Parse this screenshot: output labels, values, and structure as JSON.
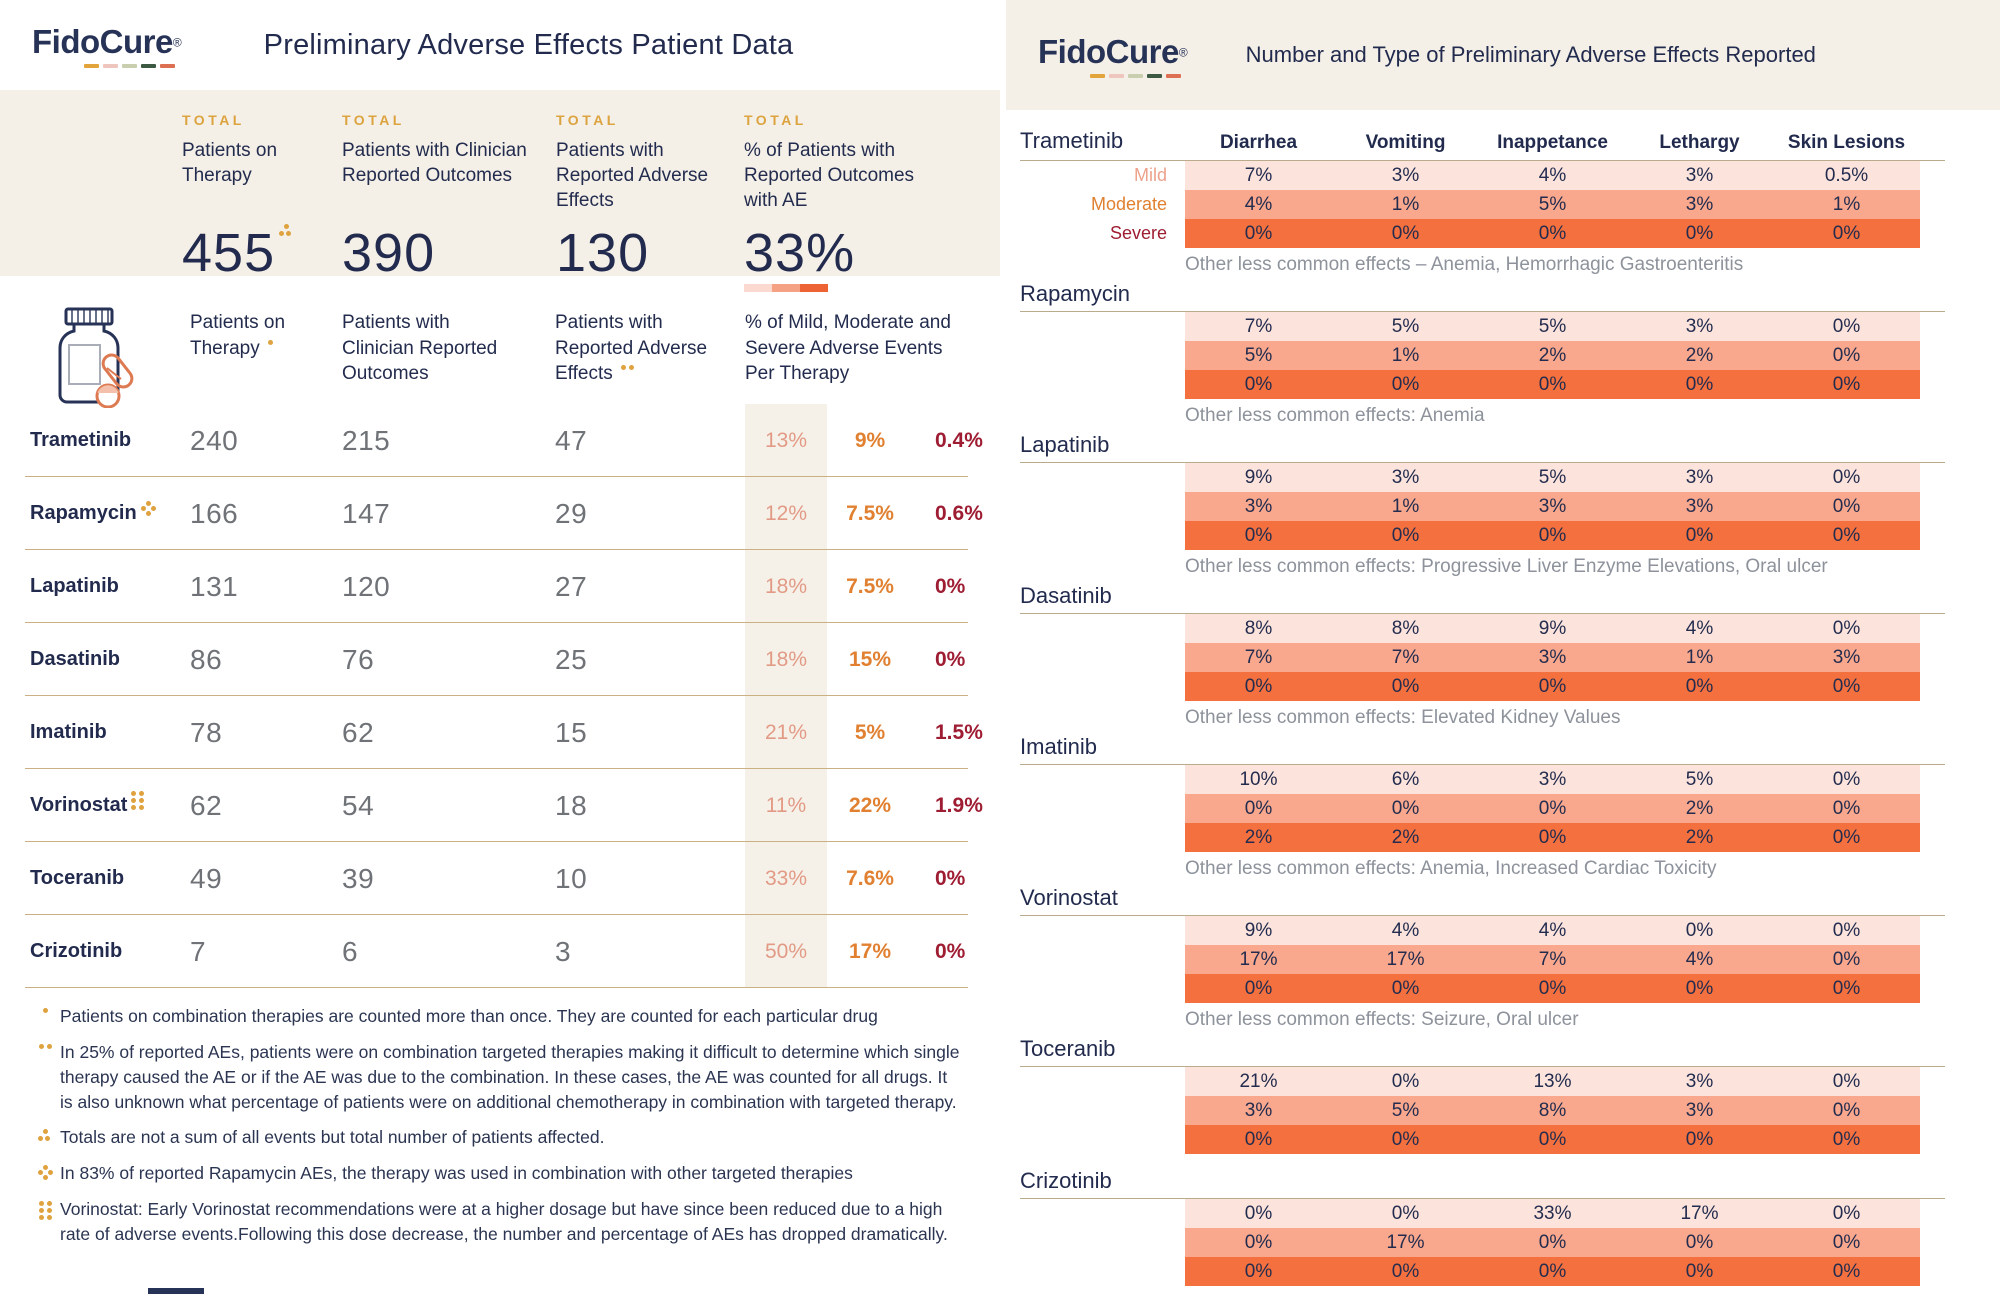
{
  "brand": {
    "name": "FidoCure",
    "registered": "®"
  },
  "colors": {
    "navy": "#273257",
    "gold": "#dfa23f",
    "cream": "#f4f0e8",
    "tan_rule": "#c9b183",
    "mild_text": "#e29a86",
    "moderate_text": "#e08030",
    "severe_text": "#9e1d33",
    "mild_bg": "#fce4dd",
    "moderate_bg": "#f9a88d",
    "severe_bg": "#f4703e",
    "scale_segments": [
      "#fbd8d0",
      "#f5a183",
      "#ee6335"
    ],
    "logo_dashes": [
      "#e2a43b",
      "#efc6bd",
      "#c9cfae",
      "#3c5a41",
      "#dd6f52"
    ]
  },
  "left_panel": {
    "title": "Preliminary Adverse Effects Patient Data",
    "stats": [
      {
        "kicker": "TOTAL",
        "label": "Patients on Therapy",
        "value": "455",
        "marker": "three-dots"
      },
      {
        "kicker": "TOTAL",
        "label": "Patients with Clinician Reported Outcomes",
        "value": "390",
        "marker": ""
      },
      {
        "kicker": "TOTAL",
        "label": "Patients with Reported Adverse Effects",
        "value": "130",
        "marker": ""
      },
      {
        "kicker": "TOTAL",
        "label": "% of Patients with Reported Outcomes with AE",
        "value": "33%",
        "marker": "",
        "has_scale_bar": true
      }
    ],
    "table_columns": [
      {
        "label": "Patients on Therapy",
        "marker": "one-dot"
      },
      {
        "label": "Patients with Clinician Reported Outcomes",
        "marker": ""
      },
      {
        "label": "Patients with Reported Adverse Effects",
        "marker": "two-dots"
      },
      {
        "label": "% of Mild, Moderate and Severe Adverse Events Per Therapy",
        "marker": ""
      }
    ],
    "footnotes": [
      {
        "marker": "one-dot",
        "text": "Patients on combination therapies are counted more than once. They are counted for each particular drug"
      },
      {
        "marker": "two-dots",
        "text": "In 25% of reported AEs, patients were on combination targeted therapies making it difficult to determine which single therapy caused the AE or if the AE was due to the combination. In these cases, the AE was counted for all drugs. It is also unknown what percentage of patients were on additional chemotherapy in combination with targeted therapy."
      },
      {
        "marker": "three-dots",
        "text": "Totals are not a sum of all events but total number of patients affected."
      },
      {
        "marker": "four-dots",
        "text": "In 83% of reported Rapamycin AEs, the therapy was used in combination with other targeted therapies"
      },
      {
        "marker": "six-dots",
        "text": "Vorinostat: Early Vorinostat recommendations were at a higher dosage but have since been reduced due to a high rate of adverse events.Following this dose decrease, the number and percentage of AEs has dropped dramatically."
      }
    ]
  },
  "right_panel": {
    "title": "Number and Type of Preliminary Adverse Effects Reported",
    "severity_labels": [
      "Mild",
      "Moderate",
      "Severe"
    ]
  },
  "chart_data": [
    {
      "type": "table",
      "title": "Preliminary Adverse Effects Patient Data",
      "columns": [
        "Therapy",
        "Patients on Therapy",
        "Patients with Clinician Reported Outcomes",
        "Patients with Reported Adverse Effects",
        "% Mild",
        "% Moderate",
        "% Severe"
      ],
      "totals": {
        "patients_on_therapy": 455,
        "patients_with_clinician_reported_outcomes": 390,
        "patients_with_reported_adverse_effects": 130,
        "pct_of_patients_with_reported_outcomes_with_ae": "33%"
      },
      "rows": [
        {
          "therapy": "Trametinib",
          "marker": "",
          "on_therapy": 240,
          "outcomes": 215,
          "adverse": 47,
          "mild": "13%",
          "moderate": "9%",
          "severe": "0.4%"
        },
        {
          "therapy": "Rapamycin",
          "marker": "four-dots",
          "on_therapy": 166,
          "outcomes": 147,
          "adverse": 29,
          "mild": "12%",
          "moderate": "7.5%",
          "severe": "0.6%"
        },
        {
          "therapy": "Lapatinib",
          "marker": "",
          "on_therapy": 131,
          "outcomes": 120,
          "adverse": 27,
          "mild": "18%",
          "moderate": "7.5%",
          "severe": "0%"
        },
        {
          "therapy": "Dasatinib",
          "marker": "",
          "on_therapy": 86,
          "outcomes": 76,
          "adverse": 25,
          "mild": "18%",
          "moderate": "15%",
          "severe": "0%"
        },
        {
          "therapy": "Imatinib",
          "marker": "",
          "on_therapy": 78,
          "outcomes": 62,
          "adverse": 15,
          "mild": "21%",
          "moderate": "5%",
          "severe": "1.5%"
        },
        {
          "therapy": "Vorinostat",
          "marker": "six-dots",
          "on_therapy": 62,
          "outcomes": 54,
          "adverse": 18,
          "mild": "11%",
          "moderate": "22%",
          "severe": "1.9%"
        },
        {
          "therapy": "Toceranib",
          "marker": "",
          "on_therapy": 49,
          "outcomes": 39,
          "adverse": 10,
          "mild": "33%",
          "moderate": "7.6%",
          "severe": "0%"
        },
        {
          "therapy": "Crizotinib",
          "marker": "",
          "on_therapy": 7,
          "outcomes": 6,
          "adverse": 3,
          "mild": "50%",
          "moderate": "17%",
          "severe": "0%"
        }
      ]
    },
    {
      "type": "heatmap",
      "title": "Number and Type of Preliminary Adverse Effects Reported",
      "columns": [
        "Diarrhea",
        "Vomiting",
        "Inappetance",
        "Lethargy",
        "Skin Lesions"
      ],
      "severity_levels": [
        "Mild",
        "Moderate",
        "Severe"
      ],
      "drugs": [
        {
          "name": "Trametinib",
          "mild": [
            "7%",
            "3%",
            "4%",
            "3%",
            "0.5%"
          ],
          "moderate": [
            "4%",
            "1%",
            "5%",
            "3%",
            "1%"
          ],
          "severe": [
            "0%",
            "0%",
            "0%",
            "0%",
            "0%"
          ],
          "other": "Other less common effects – Anemia, Hemorrhagic Gastroenteritis"
        },
        {
          "name": "Rapamycin",
          "mild": [
            "7%",
            "5%",
            "5%",
            "3%",
            "0%"
          ],
          "moderate": [
            "5%",
            "1%",
            "2%",
            "2%",
            "0%"
          ],
          "severe": [
            "0%",
            "0%",
            "0%",
            "0%",
            "0%"
          ],
          "other": "Other less common effects: Anemia"
        },
        {
          "name": "Lapatinib",
          "mild": [
            "9%",
            "3%",
            "5%",
            "3%",
            "0%"
          ],
          "moderate": [
            "3%",
            "1%",
            "3%",
            "3%",
            "0%"
          ],
          "severe": [
            "0%",
            "0%",
            "0%",
            "0%",
            "0%"
          ],
          "other": "Other less common effects: Progressive Liver Enzyme Elevations, Oral ulcer"
        },
        {
          "name": "Dasatinib",
          "mild": [
            "8%",
            "8%",
            "9%",
            "4%",
            "0%"
          ],
          "moderate": [
            "7%",
            "7%",
            "3%",
            "1%",
            "3%"
          ],
          "severe": [
            "0%",
            "0%",
            "0%",
            "0%",
            "0%"
          ],
          "other": "Other less common effects: Elevated Kidney Values"
        },
        {
          "name": "Imatinib",
          "mild": [
            "10%",
            "6%",
            "3%",
            "5%",
            "0%"
          ],
          "moderate": [
            "0%",
            "0%",
            "0%",
            "2%",
            "0%"
          ],
          "severe": [
            "2%",
            "2%",
            "0%",
            "2%",
            "0%"
          ],
          "other": "Other less common effects: Anemia, Increased Cardiac Toxicity"
        },
        {
          "name": "Vorinostat",
          "mild": [
            "9%",
            "4%",
            "4%",
            "0%",
            "0%"
          ],
          "moderate": [
            "17%",
            "17%",
            "7%",
            "4%",
            "0%"
          ],
          "severe": [
            "0%",
            "0%",
            "0%",
            "0%",
            "0%"
          ],
          "other": "Other less common effects: Seizure, Oral ulcer"
        },
        {
          "name": "Toceranib",
          "mild": [
            "21%",
            "0%",
            "13%",
            "3%",
            "0%"
          ],
          "moderate": [
            "3%",
            "5%",
            "8%",
            "3%",
            "0%"
          ],
          "severe": [
            "0%",
            "0%",
            "0%",
            "0%",
            "0%"
          ],
          "other": ""
        },
        {
          "name": "Crizotinib",
          "mild": [
            "0%",
            "0%",
            "33%",
            "17%",
            "0%"
          ],
          "moderate": [
            "0%",
            "17%",
            "0%",
            "0%",
            "0%"
          ],
          "severe": [
            "0%",
            "0%",
            "0%",
            "0%",
            "0%"
          ],
          "other": ""
        }
      ]
    }
  ]
}
